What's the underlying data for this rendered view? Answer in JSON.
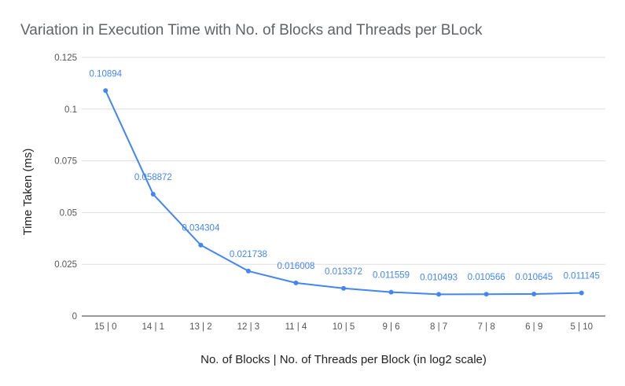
{
  "chart_data": {
    "type": "line",
    "title": "Variation in Execution Time with No. of Blocks and Threads per BLock",
    "xlabel": "No. of Blocks | No. of Threads per Block (in log2 scale)",
    "ylabel": "Time Taken (ms)",
    "categories": [
      "15 | 0",
      "14 | 1",
      "13 | 2",
      "12 | 3",
      "11 | 4",
      "10 | 5",
      "9 | 6",
      "8 | 7",
      "7 | 8",
      "6 | 9",
      "5 | 10"
    ],
    "series": [
      {
        "values": [
          0.10894,
          0.058872,
          0.034304,
          0.021738,
          0.016008,
          0.013372,
          0.011559,
          0.010493,
          0.010566,
          0.010645,
          0.011145
        ],
        "labels": [
          "0.10894",
          "0.058872",
          "0.034304",
          "0.021738",
          "0.016008",
          "0.013372",
          "0.011559",
          "0.010493",
          "0.010566",
          "0.010645",
          "0.011145"
        ],
        "color": "#4285f4"
      }
    ],
    "ylim": [
      0,
      0.125
    ],
    "yticks": [
      0,
      0.025,
      0.05,
      0.075,
      0.1,
      0.125
    ],
    "ytick_labels": [
      "0",
      "0.025",
      "0.05",
      "0.075",
      "0.1",
      "0.125"
    ],
    "grid": true,
    "legend": "none"
  }
}
